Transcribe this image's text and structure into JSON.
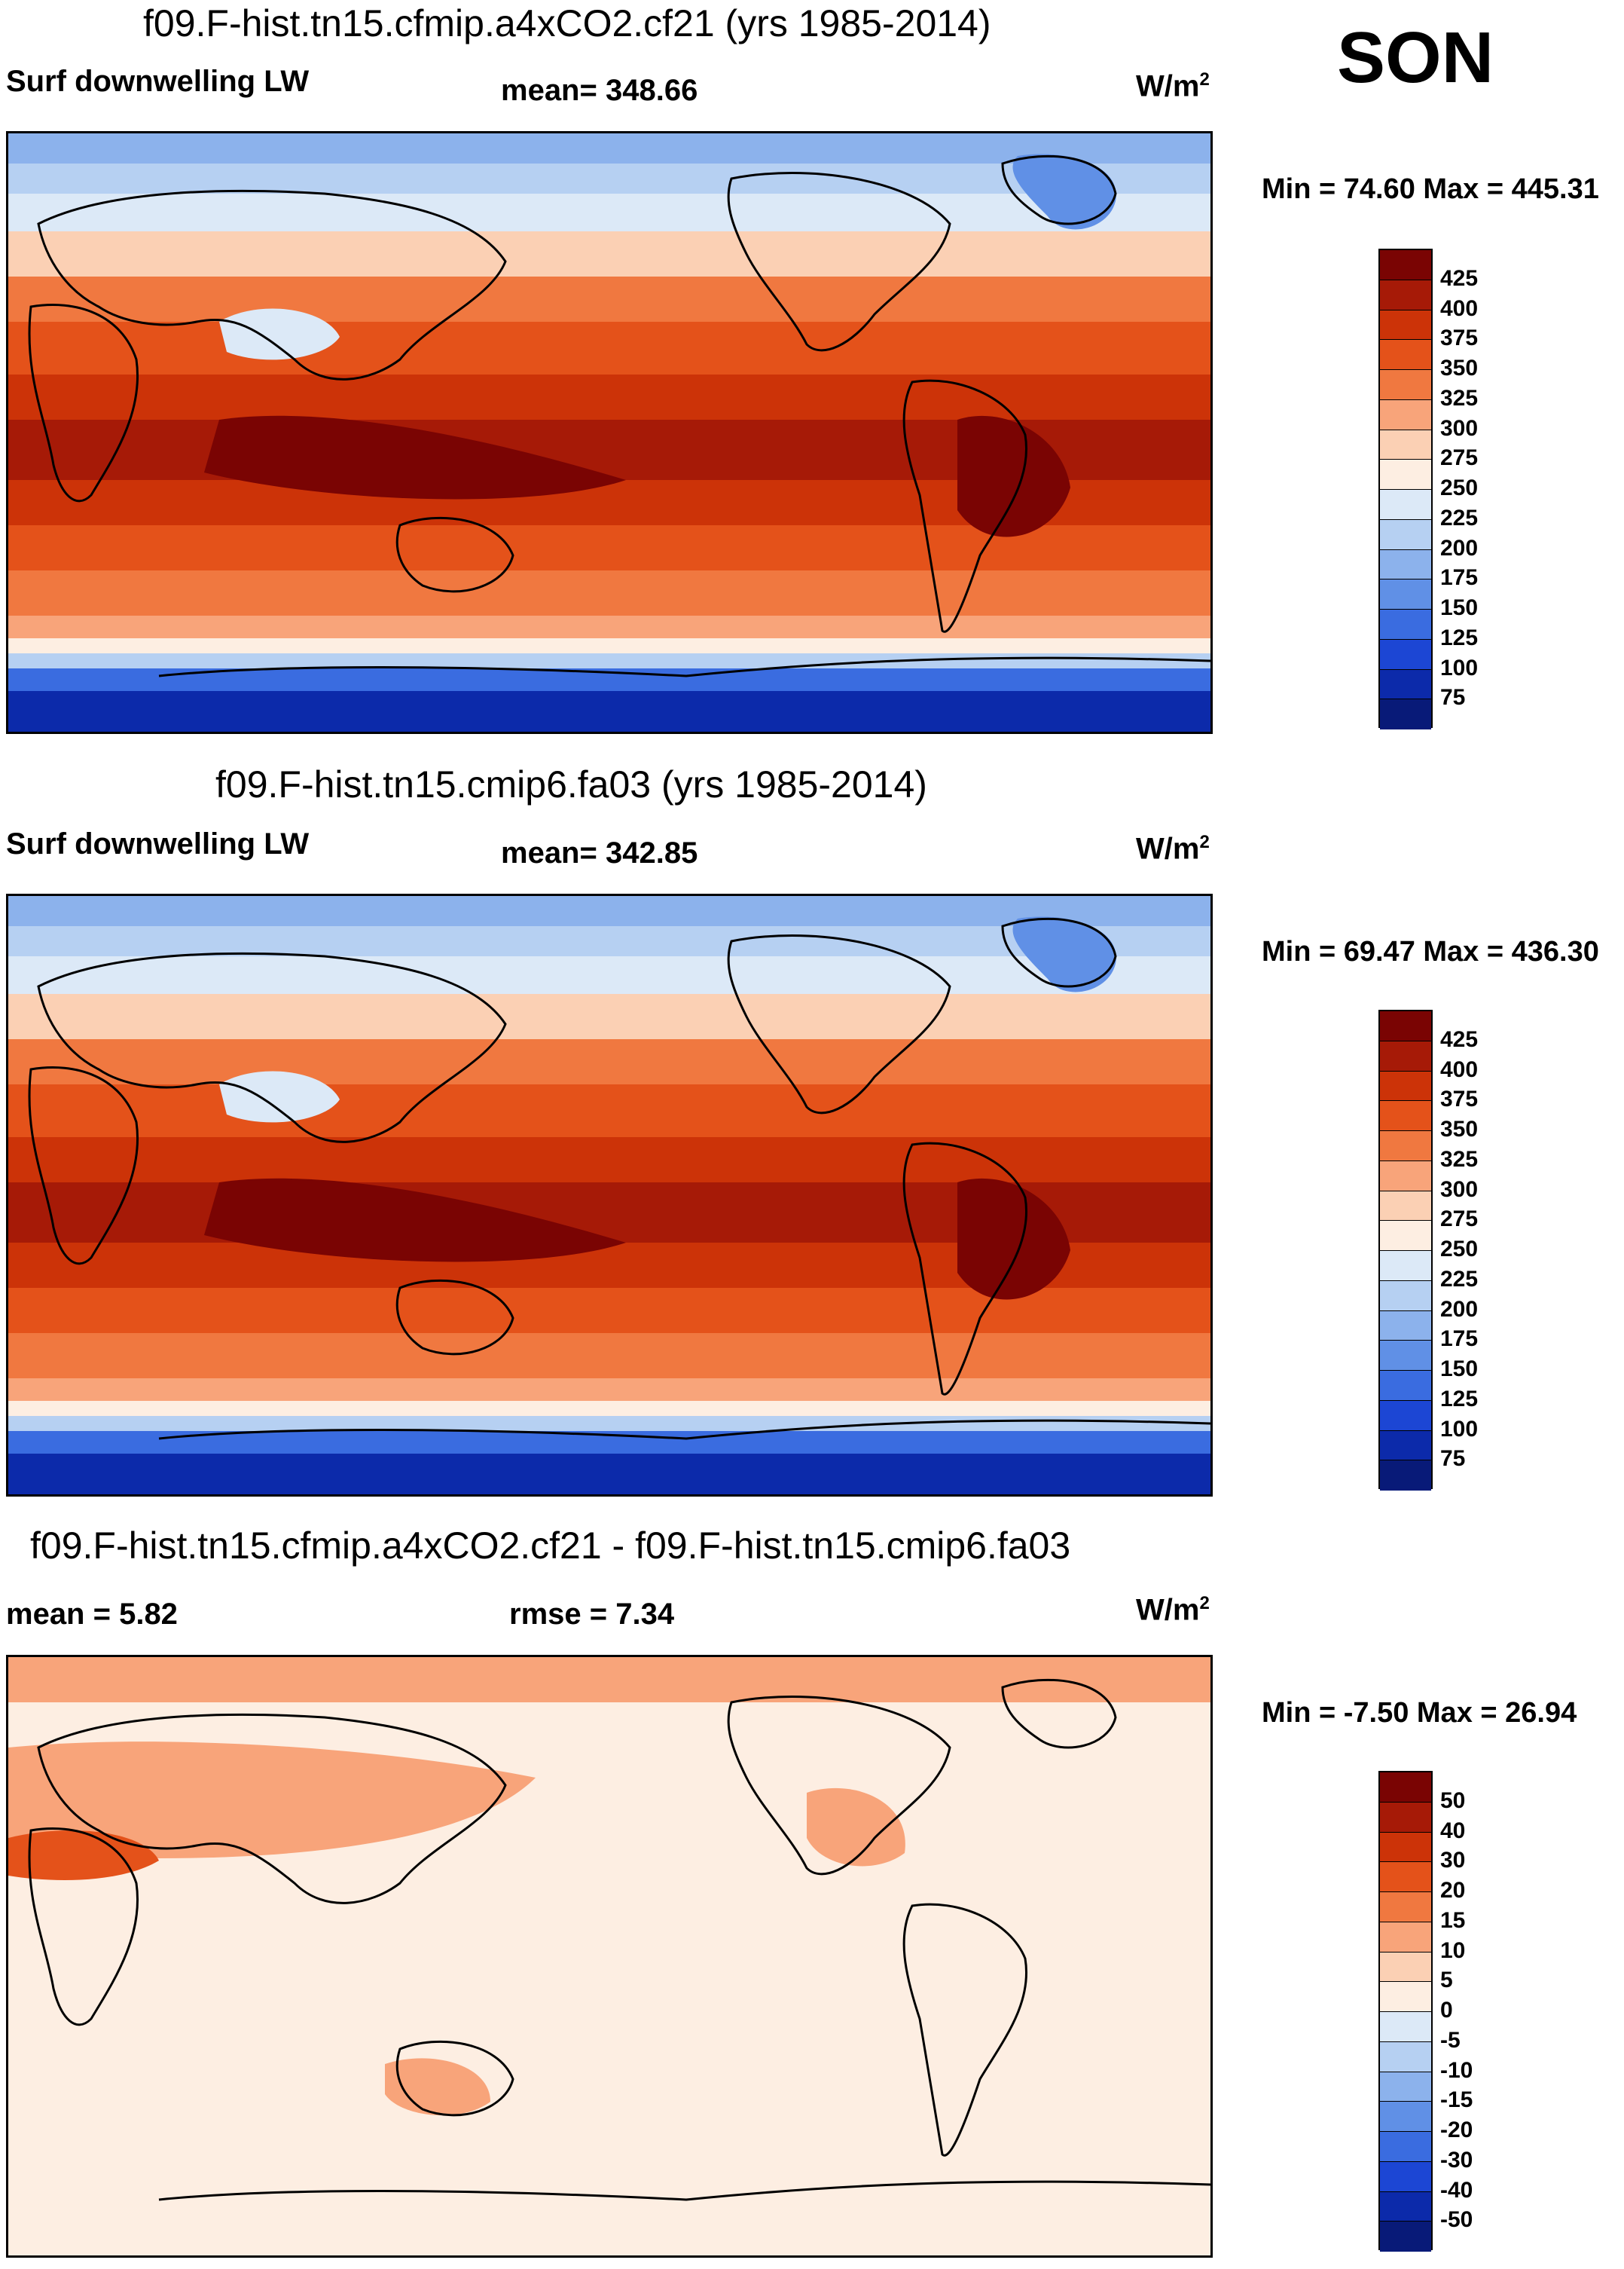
{
  "season": "SON",
  "units_base": "W/m",
  "units_exp": "2",
  "panels": [
    {
      "title": "f09.F-hist.tn15.cfmip.a4xCO2.cf21 (yrs 1985-2014)",
      "left_label": "Surf downwelling LW",
      "stat_label": "mean= 348.66",
      "minmax": "Min =  74.60 Max = 445.31",
      "colorbar_labels": [
        "425",
        "400",
        "375",
        "350",
        "325",
        "300",
        "275",
        "250",
        "225",
        "200",
        "175",
        "150",
        "125",
        "100",
        "75"
      ]
    },
    {
      "title": "f09.F-hist.tn15.cmip6.fa03 (yrs 1985-2014)",
      "left_label": "Surf downwelling LW",
      "stat_label": "mean= 342.85",
      "minmax": "Min =  69.47 Max = 436.30",
      "colorbar_labels": [
        "425",
        "400",
        "375",
        "350",
        "325",
        "300",
        "275",
        "250",
        "225",
        "200",
        "175",
        "150",
        "125",
        "100",
        "75"
      ]
    },
    {
      "title": "f09.F-hist.tn15.cfmip.a4xCO2.cf21 - f09.F-hist.tn15.cmip6.fa03",
      "left_label": "mean =   5.82",
      "stat_label": "rmse =   7.34",
      "minmax": "Min =  -7.50 Max =  26.94",
      "colorbar_labels": [
        "50",
        "40",
        "30",
        "20",
        "15",
        "10",
        "5",
        "0",
        "-5",
        "-10",
        "-15",
        "-20",
        "-30",
        "-40",
        "-50"
      ]
    }
  ],
  "colors": {
    "abs_scale": [
      "#7a0403",
      "#a61a07",
      "#cc3308",
      "#e4521a",
      "#f07840",
      "#f8a47a",
      "#fbd0b4",
      "#fdeee2",
      "#dce9f7",
      "#b6d0f2",
      "#8cb2ec",
      "#6090e6",
      "#3a6ce0",
      "#1c46d4",
      "#0c2aaa",
      "#081a78"
    ],
    "diff_scale": [
      "#7a0403",
      "#a61a07",
      "#cc3308",
      "#e4521a",
      "#f07840",
      "#f8a47a",
      "#fbd0b4",
      "#fdeee2",
      "#dce9f7",
      "#b6d0f2",
      "#8cb2ec",
      "#6090e6",
      "#3a6ce0",
      "#1c46d4",
      "#0c2aaa",
      "#081a78"
    ]
  },
  "chart_data": [
    {
      "type": "heatmap",
      "title": "f09.F-hist.tn15.cfmip.a4xCO2.cf21 (yrs 1985-2014)",
      "variable": "Surf downwelling LW",
      "units": "W/m2",
      "mean": 348.66,
      "min": 74.6,
      "max": 445.31,
      "levels": [
        75,
        100,
        125,
        150,
        175,
        200,
        225,
        250,
        275,
        300,
        325,
        350,
        375,
        400,
        425
      ]
    },
    {
      "type": "heatmap",
      "title": "f09.F-hist.tn15.cmip6.fa03 (yrs 1985-2014)",
      "variable": "Surf downwelling LW",
      "units": "W/m2",
      "mean": 342.85,
      "min": 69.47,
      "max": 436.3,
      "levels": [
        75,
        100,
        125,
        150,
        175,
        200,
        225,
        250,
        275,
        300,
        325,
        350,
        375,
        400,
        425
      ]
    },
    {
      "type": "heatmap",
      "title": "f09.F-hist.tn15.cfmip.a4xCO2.cf21 - f09.F-hist.tn15.cmip6.fa03",
      "units": "W/m2",
      "mean": 5.82,
      "rmse": 7.34,
      "min": -7.5,
      "max": 26.94,
      "levels": [
        -50,
        -40,
        -30,
        -20,
        -15,
        -10,
        -5,
        0,
        5,
        10,
        15,
        20,
        30,
        40,
        50
      ]
    }
  ]
}
